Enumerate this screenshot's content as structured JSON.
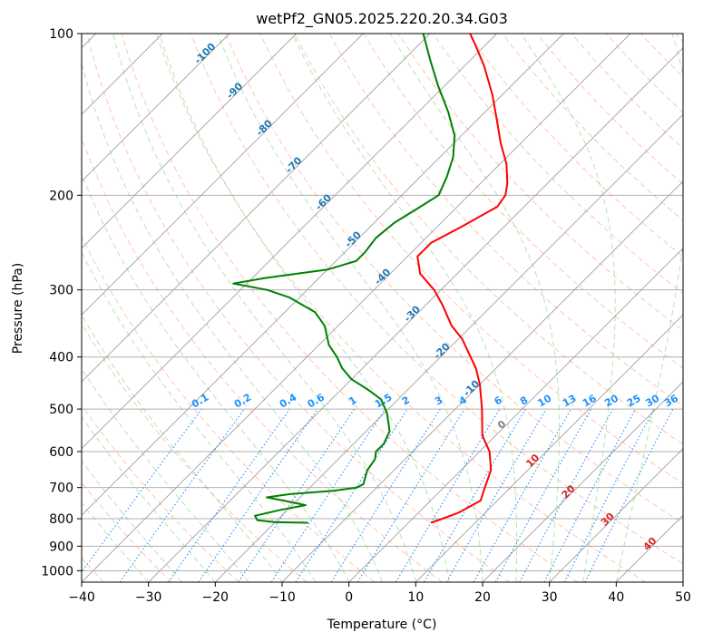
{
  "chart_data": {
    "type": "line",
    "title": "wetPf2_GN05.2025.220.20.34.G03",
    "xlabel": "Temperature (°C)",
    "ylabel": "Pressure (hPa)",
    "xlim": [
      -40,
      50
    ],
    "ylim": [
      1050,
      100
    ],
    "y_scale": "log",
    "skew": "skew-T log-p",
    "grid": true,
    "x_ticks": [
      "−40",
      "−30",
      "−20",
      "−10",
      "0",
      "10",
      "20",
      "30",
      "40",
      "50"
    ],
    "x_tick_values": [
      -40,
      -30,
      -20,
      -10,
      0,
      10,
      20,
      30,
      40,
      50
    ],
    "y_ticks": [
      "100",
      "200",
      "300",
      "400",
      "500",
      "600",
      "700",
      "800",
      "900",
      "1000"
    ],
    "y_tick_values": [
      100,
      200,
      300,
      400,
      500,
      600,
      700,
      800,
      900,
      1000
    ],
    "series": [
      {
        "color": "#ff0000",
        "points": [
          {
            "p": 814,
            "t": 3.4
          },
          {
            "p": 800,
            "t": 4.5
          },
          {
            "p": 780,
            "t": 6.0
          },
          {
            "p": 740,
            "t": 7.5
          },
          {
            "p": 710,
            "t": 6.5
          },
          {
            "p": 650,
            "t": 4.5
          },
          {
            "p": 600,
            "t": 1.5
          },
          {
            "p": 560,
            "t": -2.0
          },
          {
            "p": 500,
            "t": -6.0
          },
          {
            "p": 450,
            "t": -10.0
          },
          {
            "p": 420,
            "t": -13.0
          },
          {
            "p": 400,
            "t": -15.5
          },
          {
            "p": 370,
            "t": -19.5
          },
          {
            "p": 350,
            "t": -23.0
          },
          {
            "p": 320,
            "t": -27.5
          },
          {
            "p": 300,
            "t": -31.0
          },
          {
            "p": 280,
            "t": -35.5
          },
          {
            "p": 260,
            "t": -38.5
          },
          {
            "p": 245,
            "t": -38.5
          },
          {
            "p": 230,
            "t": -36.5
          },
          {
            "p": 210,
            "t": -34.0
          },
          {
            "p": 200,
            "t": -34.5
          },
          {
            "p": 190,
            "t": -36.0
          },
          {
            "p": 175,
            "t": -39.0
          },
          {
            "p": 160,
            "t": -43.0
          },
          {
            "p": 145,
            "t": -47.0
          },
          {
            "p": 130,
            "t": -51.5
          },
          {
            "p": 115,
            "t": -57.0
          },
          {
            "p": 105,
            "t": -61.5
          },
          {
            "p": 100,
            "t": -64.0
          }
        ]
      },
      {
        "color": "#008000",
        "points": [
          {
            "p": 814,
            "t": -15.0
          },
          {
            "p": 812,
            "t": -20.0
          },
          {
            "p": 805,
            "t": -23.0
          },
          {
            "p": 790,
            "t": -24.0
          },
          {
            "p": 770,
            "t": -21.0
          },
          {
            "p": 755,
            "t": -18.0
          },
          {
            "p": 740,
            "t": -22.0
          },
          {
            "p": 730,
            "t": -25.0
          },
          {
            "p": 720,
            "t": -22.0
          },
          {
            "p": 710,
            "t": -16.0
          },
          {
            "p": 700,
            "t": -13.0
          },
          {
            "p": 690,
            "t": -12.5
          },
          {
            "p": 650,
            "t": -14.0
          },
          {
            "p": 620,
            "t": -14.5
          },
          {
            "p": 600,
            "t": -15.5
          },
          {
            "p": 580,
            "t": -15.5
          },
          {
            "p": 550,
            "t": -16.5
          },
          {
            "p": 510,
            "t": -19.5
          },
          {
            "p": 480,
            "t": -22.5
          },
          {
            "p": 460,
            "t": -26.0
          },
          {
            "p": 440,
            "t": -30.0
          },
          {
            "p": 420,
            "t": -33.0
          },
          {
            "p": 400,
            "t": -35.5
          },
          {
            "p": 380,
            "t": -38.5
          },
          {
            "p": 350,
            "t": -42.0
          },
          {
            "p": 330,
            "t": -45.5
          },
          {
            "p": 310,
            "t": -51.5
          },
          {
            "p": 300,
            "t": -56.0
          },
          {
            "p": 292,
            "t": -62.0
          },
          {
            "p": 285,
            "t": -58.0
          },
          {
            "p": 275,
            "t": -50.0
          },
          {
            "p": 265,
            "t": -47.0
          },
          {
            "p": 255,
            "t": -47.0
          },
          {
            "p": 240,
            "t": -47.5
          },
          {
            "p": 225,
            "t": -47.0
          },
          {
            "p": 210,
            "t": -45.5
          },
          {
            "p": 200,
            "t": -44.5
          },
          {
            "p": 185,
            "t": -46.0
          },
          {
            "p": 170,
            "t": -48.0
          },
          {
            "p": 155,
            "t": -51.0
          },
          {
            "p": 140,
            "t": -55.5
          },
          {
            "p": 125,
            "t": -61.0
          },
          {
            "p": 112,
            "t": -66.0
          },
          {
            "p": 100,
            "t": -71.0
          }
        ]
      }
    ],
    "isotherm_style": {
      "color": "#a0a0a0"
    },
    "dry_adiabat_style": {
      "color": "#ff7f50",
      "dash": "dashed"
    },
    "moist_adiabat_style": {
      "color": "#5fbf5f",
      "dash": "dashed"
    },
    "mixing_ratio_style": {
      "color": "#1e90ff",
      "dash": "dotted"
    },
    "mixing_ratio_labels": [
      "0.1",
      "0.2",
      "0.4",
      "0.6",
      "1",
      "1.5",
      "2",
      "3",
      "4",
      "6",
      "8",
      "10",
      "13",
      "16",
      "20",
      "25",
      "30",
      "36"
    ],
    "mixing_ratio_values": [
      0.1,
      0.2,
      0.4,
      0.6,
      1,
      1.5,
      2,
      3,
      4,
      6,
      8,
      10,
      13,
      16,
      20,
      25,
      30,
      36
    ],
    "blue_temp_labels": [
      "-100",
      "-90",
      "-80",
      "-70",
      "-60",
      "-50",
      "-40",
      "-30",
      "-20",
      "-10"
    ],
    "blue_temp_label_color": "#1f77b4",
    "red_temp_labels": [
      "0",
      "10",
      "20",
      "30",
      "40"
    ],
    "red_temp_label_color": "#d62728",
    "zero_label_color": "#808080"
  }
}
